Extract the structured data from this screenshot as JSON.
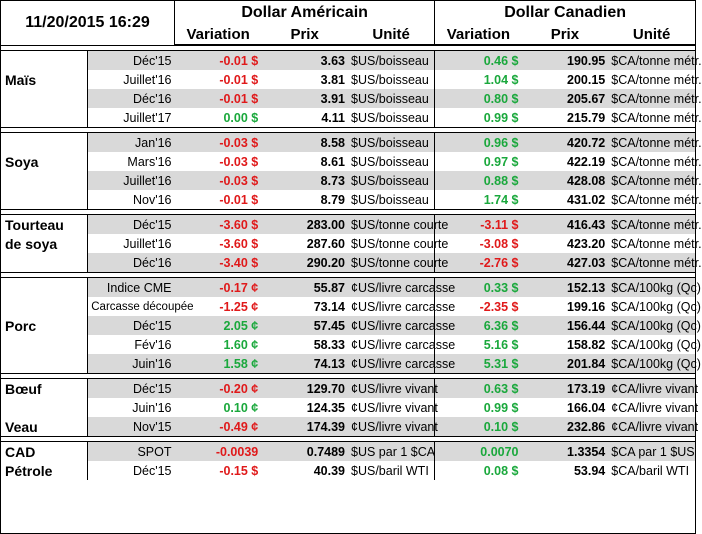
{
  "header": {
    "datetime": "11/20/2015 16:29",
    "usd_title": "Dollar Américain",
    "cad_title": "Dollar Canadien",
    "col_variation": "Variation",
    "col_prix": "Prix",
    "col_unite": "Unité"
  },
  "groups": [
    {
      "name": [
        "Maïs"
      ],
      "rows": [
        {
          "period": "Déc'15",
          "us_var": "-0.01 $",
          "us_price": "3.63",
          "us_unit": "$US/boisseau",
          "ca_var": "0.46 $",
          "ca_price": "190.95",
          "ca_unit": "$CA/tonne métr."
        },
        {
          "period": "Juillet'16",
          "us_var": "-0.01 $",
          "us_price": "3.81",
          "us_unit": "$US/boisseau",
          "ca_var": "1.04 $",
          "ca_price": "200.15",
          "ca_unit": "$CA/tonne métr."
        },
        {
          "period": "Déc'16",
          "us_var": "-0.01 $",
          "us_price": "3.91",
          "us_unit": "$US/boisseau",
          "ca_var": "0.80 $",
          "ca_price": "205.67",
          "ca_unit": "$CA/tonne métr."
        },
        {
          "period": "Juillet'17",
          "us_var": "0.00 $",
          "us_price": "4.11",
          "us_unit": "$US/boisseau",
          "ca_var": "0.99 $",
          "ca_price": "215.79",
          "ca_unit": "$CA/tonne métr."
        }
      ]
    },
    {
      "name": [
        "Soya"
      ],
      "rows": [
        {
          "period": "Jan'16",
          "us_var": "-0.03 $",
          "us_price": "8.58",
          "us_unit": "$US/boisseau",
          "ca_var": "0.96 $",
          "ca_price": "420.72",
          "ca_unit": "$CA/tonne métr."
        },
        {
          "period": "Mars'16",
          "us_var": "-0.03 $",
          "us_price": "8.61",
          "us_unit": "$US/boisseau",
          "ca_var": "0.97 $",
          "ca_price": "422.19",
          "ca_unit": "$CA/tonne métr."
        },
        {
          "period": "Juillet'16",
          "us_var": "-0.03 $",
          "us_price": "8.73",
          "us_unit": "$US/boisseau",
          "ca_var": "0.88 $",
          "ca_price": "428.08",
          "ca_unit": "$CA/tonne métr."
        },
        {
          "period": "Nov'16",
          "us_var": "-0.01 $",
          "us_price": "8.79",
          "us_unit": "$US/boisseau",
          "ca_var": "1.74 $",
          "ca_price": "431.02",
          "ca_unit": "$CA/tonne métr."
        }
      ]
    },
    {
      "name": [
        "Tourteau",
        "de soya"
      ],
      "rows": [
        {
          "period": "Déc'15",
          "us_var": "-3.60 $",
          "us_price": "283.00",
          "us_unit": "$US/tonne courte",
          "ca_var": "-3.11 $",
          "ca_price": "416.43",
          "ca_unit": "$CA/tonne métr."
        },
        {
          "period": "Juillet'16",
          "us_var": "-3.60 $",
          "us_price": "287.60",
          "us_unit": "$US/tonne courte",
          "ca_var": "-3.08 $",
          "ca_price": "423.20",
          "ca_unit": "$CA/tonne métr."
        },
        {
          "period": "Déc'16",
          "us_var": "-3.40 $",
          "us_price": "290.20",
          "us_unit": "$US/tonne courte",
          "ca_var": "-2.76 $",
          "ca_price": "427.03",
          "ca_unit": "$CA/tonne métr."
        }
      ]
    },
    {
      "name": [
        "Porc"
      ],
      "rows": [
        {
          "period": "Indice CME",
          "us_var": "-0.17 ¢",
          "us_price": "55.87",
          "us_unit": "¢US/livre carcasse",
          "ca_var": "0.33 $",
          "ca_price": "152.13",
          "ca_unit": "$CA/100kg (Qc)"
        },
        {
          "period": "Carcasse découpée",
          "us_var": "-1.25 ¢",
          "us_price": "73.14",
          "us_unit": "¢US/livre carcasse",
          "ca_var": "-2.35 $",
          "ca_price": "199.16",
          "ca_unit": "$CA/100kg (Qc)"
        },
        {
          "period": "Déc'15",
          "us_var": "2.05 ¢",
          "us_price": "57.45",
          "us_unit": "¢US/livre carcasse",
          "ca_var": "6.36 $",
          "ca_price": "156.44",
          "ca_unit": "$CA/100kg (Qc)"
        },
        {
          "period": "Fév'16",
          "us_var": "1.60 ¢",
          "us_price": "58.33",
          "us_unit": "¢US/livre carcasse",
          "ca_var": "5.16 $",
          "ca_price": "158.82",
          "ca_unit": "$CA/100kg (Qc)"
        },
        {
          "period": "Juin'16",
          "us_var": "1.58 ¢",
          "us_price": "74.13",
          "us_unit": "¢US/livre carcasse",
          "ca_var": "5.31 $",
          "ca_price": "201.84",
          "ca_unit": "$CA/100kg (Qc)"
        }
      ]
    },
    {
      "name": [
        "Bœuf",
        "",
        "Veau"
      ],
      "rows": [
        {
          "period": "Déc'15",
          "us_var": "-0.20 ¢",
          "us_price": "129.70",
          "us_unit": "¢US/livre vivant",
          "ca_var": "0.63 $",
          "ca_price": "173.19",
          "ca_unit": "¢CA/livre vivant"
        },
        {
          "period": "Juin'16",
          "us_var": "0.10 ¢",
          "us_price": "124.35",
          "us_unit": "¢US/livre vivant",
          "ca_var": "0.99 $",
          "ca_price": "166.04",
          "ca_unit": "¢CA/livre vivant"
        },
        {
          "period": "Nov'15",
          "us_var": "-0.49 ¢",
          "us_price": "174.39",
          "us_unit": "¢US/livre vivant",
          "ca_var": "0.10 $",
          "ca_price": "232.86",
          "ca_unit": "¢CA/livre vivant"
        }
      ]
    },
    {
      "name": [
        "CAD",
        "Pétrole"
      ],
      "rows": [
        {
          "period": "SPOT",
          "us_var": "-0.0039",
          "us_price": "0.7489",
          "us_unit": "$US par 1 $CA",
          "ca_var": "0.0070",
          "ca_price": "1.3354",
          "ca_unit": "$CA par 1 $US"
        },
        {
          "period": "Déc'15",
          "us_var": "-0.15 $",
          "us_price": "40.39",
          "us_unit": "$US/baril WTI",
          "ca_var": "0.08 $",
          "ca_price": "53.94",
          "ca_unit": "$CA/baril WTI"
        }
      ]
    }
  ],
  "colors": {
    "negative": "#e0191a",
    "positive": "#1aa83c",
    "shade": "#d9d9d9"
  }
}
